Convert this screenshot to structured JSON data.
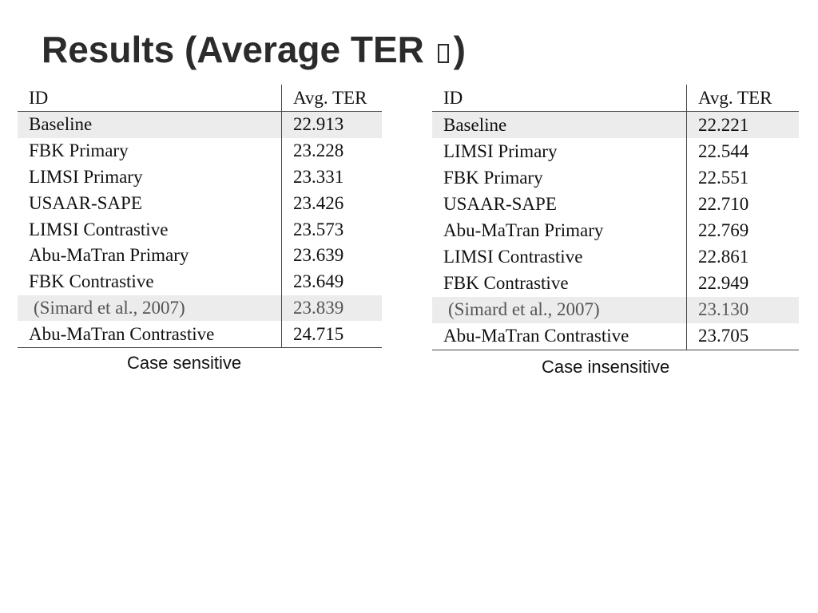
{
  "slide": {
    "title_text": "Results (Average TER ",
    "title_close": ")"
  },
  "tables": [
    {
      "caption": "Case sensitive",
      "header": {
        "id": "ID",
        "value": "Avg. TER"
      },
      "rows": [
        {
          "id": "Baseline",
          "value": "22.913",
          "shaded": true,
          "muted": false
        },
        {
          "id": "FBK Primary",
          "value": "23.228",
          "shaded": false,
          "muted": false
        },
        {
          "id": "LIMSI Primary",
          "value": "23.331",
          "shaded": false,
          "muted": false
        },
        {
          "id": "USAAR-SAPE",
          "value": "23.426",
          "shaded": false,
          "muted": false
        },
        {
          "id": "LIMSI Contrastive",
          "value": "23.573",
          "shaded": false,
          "muted": false
        },
        {
          "id": "Abu-MaTran Primary",
          "value": "23.639",
          "shaded": false,
          "muted": false
        },
        {
          "id": "FBK Contrastive",
          "value": "23.649",
          "shaded": false,
          "muted": false
        },
        {
          "id": "(Simard et al., 2007)",
          "value": "23.839",
          "shaded": true,
          "muted": true
        },
        {
          "id": "Abu-MaTran Contrastive",
          "value": "24.715",
          "shaded": false,
          "muted": false
        }
      ]
    },
    {
      "caption": "Case insensitive",
      "header": {
        "id": "ID",
        "value": "Avg. TER"
      },
      "rows": [
        {
          "id": "Baseline",
          "value": "22.221",
          "shaded": true,
          "muted": false
        },
        {
          "id": "LIMSI Primary",
          "value": "22.544",
          "shaded": false,
          "muted": false
        },
        {
          "id": "FBK Primary",
          "value": "22.551",
          "shaded": false,
          "muted": false
        },
        {
          "id": "USAAR-SAPE",
          "value": "22.710",
          "shaded": false,
          "muted": false
        },
        {
          "id": "Abu-MaTran Primary",
          "value": "22.769",
          "shaded": false,
          "muted": false
        },
        {
          "id": "LIMSI Contrastive",
          "value": "22.861",
          "shaded": false,
          "muted": false
        },
        {
          "id": "FBK Contrastive",
          "value": "22.949",
          "shaded": false,
          "muted": false
        },
        {
          "id": "(Simard et al., 2007)",
          "value": "23.130",
          "shaded": true,
          "muted": true
        },
        {
          "id": "Abu-MaTran Contrastive",
          "value": "23.705",
          "shaded": false,
          "muted": false
        }
      ]
    }
  ]
}
